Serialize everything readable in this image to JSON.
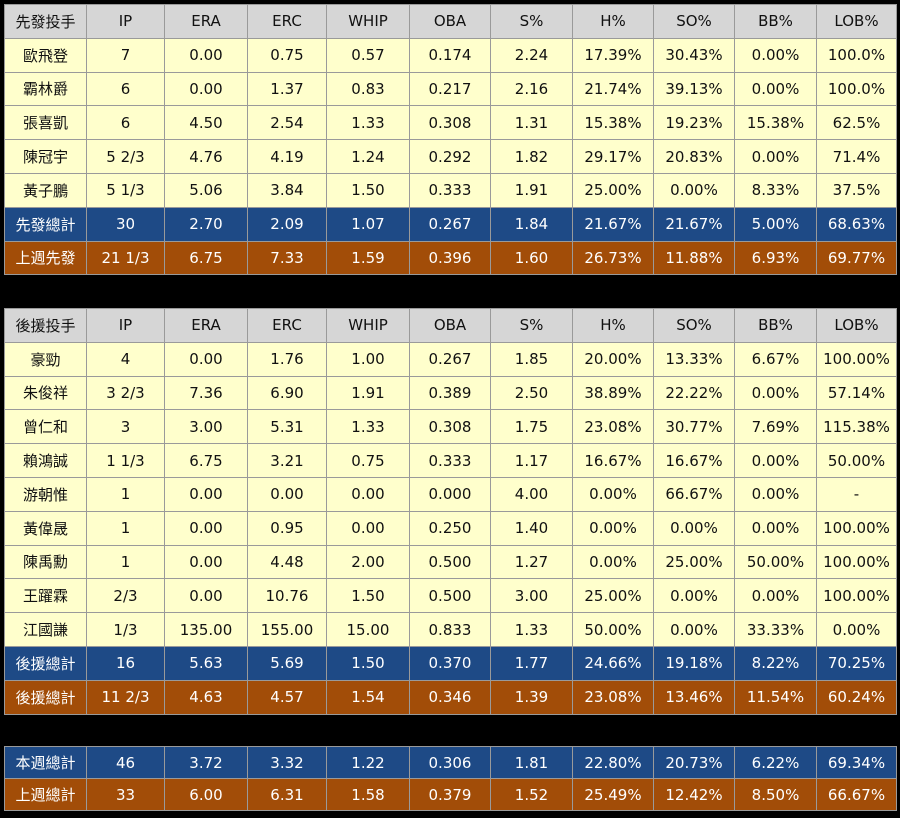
{
  "starters": {
    "headers": [
      "先發投手",
      "IP",
      "ERA",
      "ERC",
      "WHIP",
      "OBA",
      "S%",
      "H%",
      "SO%",
      "BB%",
      "LOB%"
    ],
    "rows": [
      [
        "歐飛登",
        "7",
        "0.00",
        "0.75",
        "0.57",
        "0.174",
        "2.24",
        "17.39%",
        "30.43%",
        "0.00%",
        "100.0%"
      ],
      [
        "霸林爵",
        "6",
        "0.00",
        "1.37",
        "0.83",
        "0.217",
        "2.16",
        "21.74%",
        "39.13%",
        "0.00%",
        "100.0%"
      ],
      [
        "張喜凱",
        "6",
        "4.50",
        "2.54",
        "1.33",
        "0.308",
        "1.31",
        "15.38%",
        "19.23%",
        "15.38%",
        "62.5%"
      ],
      [
        "陳冠宇",
        "5 2/3",
        "4.76",
        "4.19",
        "1.24",
        "0.292",
        "1.82",
        "29.17%",
        "20.83%",
        "0.00%",
        "71.4%"
      ],
      [
        "黃子鵬",
        "5 1/3",
        "5.06",
        "3.84",
        "1.50",
        "0.333",
        "1.91",
        "25.00%",
        "0.00%",
        "8.33%",
        "37.5%"
      ]
    ],
    "total": [
      "先發總計",
      "30",
      "2.70",
      "2.09",
      "1.07",
      "0.267",
      "1.84",
      "21.67%",
      "21.67%",
      "5.00%",
      "68.63%"
    ],
    "last_week": [
      "上週先發",
      "21 1/3",
      "6.75",
      "7.33",
      "1.59",
      "0.396",
      "1.60",
      "26.73%",
      "11.88%",
      "6.93%",
      "69.77%"
    ]
  },
  "relievers": {
    "headers": [
      "後援投手",
      "IP",
      "ERA",
      "ERC",
      "WHIP",
      "OBA",
      "S%",
      "H%",
      "SO%",
      "BB%",
      "LOB%"
    ],
    "rows": [
      [
        "豪勁",
        "4",
        "0.00",
        "1.76",
        "1.00",
        "0.267",
        "1.85",
        "20.00%",
        "13.33%",
        "6.67%",
        "100.00%"
      ],
      [
        "朱俊祥",
        "3 2/3",
        "7.36",
        "6.90",
        "1.91",
        "0.389",
        "2.50",
        "38.89%",
        "22.22%",
        "0.00%",
        "57.14%"
      ],
      [
        "曾仁和",
        "3",
        "3.00",
        "5.31",
        "1.33",
        "0.308",
        "1.75",
        "23.08%",
        "30.77%",
        "7.69%",
        "115.38%"
      ],
      [
        "賴鴻誠",
        "1 1/3",
        "6.75",
        "3.21",
        "0.75",
        "0.333",
        "1.17",
        "16.67%",
        "16.67%",
        "0.00%",
        "50.00%"
      ],
      [
        "游朝惟",
        "1",
        "0.00",
        "0.00",
        "0.00",
        "0.000",
        "4.00",
        "0.00%",
        "66.67%",
        "0.00%",
        "-"
      ],
      [
        "黃偉晟",
        "1",
        "0.00",
        "0.95",
        "0.00",
        "0.250",
        "1.40",
        "0.00%",
        "0.00%",
        "0.00%",
        "100.00%"
      ],
      [
        "陳禹勳",
        "1",
        "0.00",
        "4.48",
        "2.00",
        "0.500",
        "1.27",
        "0.00%",
        "25.00%",
        "50.00%",
        "100.00%"
      ],
      [
        "王躍霖",
        "2/3",
        "0.00",
        "10.76",
        "1.50",
        "0.500",
        "3.00",
        "25.00%",
        "0.00%",
        "0.00%",
        "100.00%"
      ],
      [
        "江國謙",
        "1/3",
        "135.00",
        "155.00",
        "15.00",
        "0.833",
        "1.33",
        "50.00%",
        "0.00%",
        "33.33%",
        "0.00%"
      ]
    ],
    "total": [
      "後援總計",
      "16",
      "5.63",
      "5.69",
      "1.50",
      "0.370",
      "1.77",
      "24.66%",
      "19.18%",
      "8.22%",
      "70.25%"
    ],
    "last_week": [
      "後援總計",
      "11 2/3",
      "4.63",
      "4.57",
      "1.54",
      "0.346",
      "1.39",
      "23.08%",
      "13.46%",
      "11.54%",
      "60.24%"
    ]
  },
  "weekly": {
    "this_week": [
      "本週總計",
      "46",
      "3.72",
      "3.32",
      "1.22",
      "0.306",
      "1.81",
      "22.80%",
      "20.73%",
      "6.22%",
      "69.34%"
    ],
    "last_week": [
      "上週總計",
      "33",
      "6.00",
      "6.31",
      "1.58",
      "0.379",
      "1.52",
      "25.49%",
      "12.42%",
      "8.50%",
      "66.67%"
    ]
  },
  "colors": {
    "header_bg": "#d6d6d6",
    "row_bg": "#ffffcc",
    "total_blue": "#1e4a86",
    "total_brown": "#a24d08",
    "page_bg": "#000000"
  }
}
